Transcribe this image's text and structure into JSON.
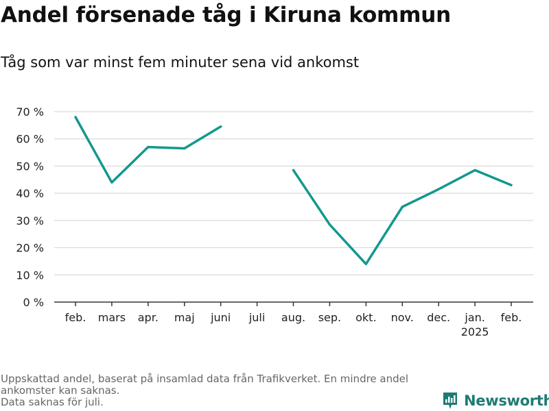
{
  "header": {
    "title": "Andel försenade tåg i Kiruna kommun",
    "subtitle": "Tåg som var minst fem minuter sena vid ankomst"
  },
  "footnote": {
    "lines": [
      "Uppskattad andel, baserat på insamlad data från Trafikverket. En mindre andel",
      "ankomster kan saknas.",
      "Data saknas för juli."
    ]
  },
  "logo": {
    "text": "Newsworthy",
    "icon": "newsworthy-logo-icon",
    "color": "#1f7b74"
  },
  "chart_data": {
    "type": "line",
    "categories": [
      "feb.",
      "mars",
      "apr.",
      "maj",
      "juni",
      "juli",
      "aug.",
      "sep.",
      "okt.",
      "nov.",
      "dec.",
      "jan.",
      "feb."
    ],
    "year_label": {
      "text": "2025",
      "category_index": 11
    },
    "series": [
      {
        "values": [
          68,
          44,
          57,
          56.5,
          64.5,
          null,
          48.5,
          28.5,
          14,
          35,
          41.5,
          48.5,
          43
        ],
        "color": "#12988d"
      }
    ],
    "ylim": [
      0,
      70
    ],
    "yticks": [
      0,
      10,
      20,
      30,
      40,
      50,
      60,
      70
    ],
    "ytick_suffix": " %",
    "grid": true,
    "legend": "none",
    "colors": {
      "line": "#12988d",
      "grid": "#d9d9d9",
      "axis": "#333333"
    }
  }
}
